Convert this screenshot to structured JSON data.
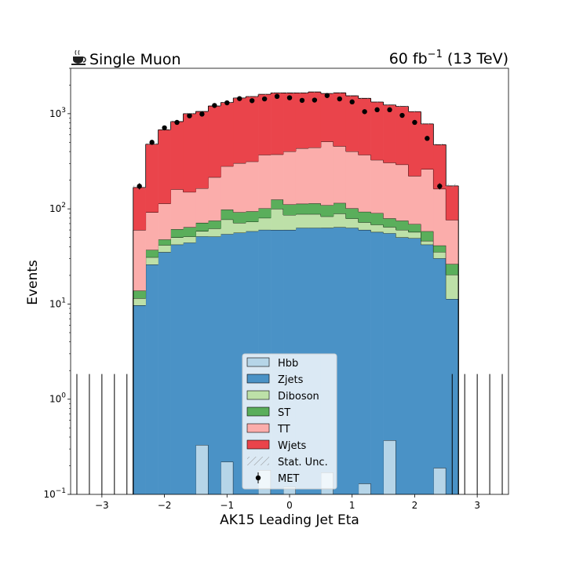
{
  "header": {
    "left_text": "Single Muon",
    "left_icon": "coffee-cup-icon",
    "lumi_value": "60 fb",
    "lumi_exponent": "−1",
    "lumi_energy": " (13 TeV)"
  },
  "chart_data": {
    "type": "histogram-stacked",
    "xlabel": "AK15 Leading Jet Eta",
    "ylabel": "Events",
    "yscale": "log",
    "xlim": [
      -3.5,
      3.5
    ],
    "ylim": [
      0.1,
      3000
    ],
    "x_ticks": [
      -3,
      -2,
      -1,
      0,
      1,
      2,
      3
    ],
    "x_tick_labels": [
      "−3",
      "−2",
      "−1",
      "0",
      "1",
      "2",
      "3"
    ],
    "y_ticks": [
      {
        "value": 0.1,
        "mantissa": "10",
        "exp": "−1"
      },
      {
        "value": 1,
        "mantissa": "10",
        "exp": "0"
      },
      {
        "value": 10,
        "mantissa": "10",
        "exp": "1"
      },
      {
        "value": 100,
        "mantissa": "10",
        "exp": "2"
      },
      {
        "value": 1000,
        "mantissa": "10",
        "exp": "3"
      }
    ],
    "bin_edges": [
      -3.5,
      -3.3,
      -3.1,
      -2.9,
      -2.7,
      -2.5,
      -2.3,
      -2.1,
      -1.9,
      -1.7,
      -1.5,
      -1.3,
      -1.1,
      -0.9,
      -0.7,
      -0.5,
      -0.3,
      -0.1,
      0.1,
      0.3,
      0.5,
      0.7,
      0.9,
      1.1,
      1.3,
      1.5,
      1.7,
      1.9,
      2.1,
      2.3,
      2.5,
      2.7,
      2.9,
      3.1,
      3.3,
      3.5
    ],
    "series": [
      {
        "name": "Hbb",
        "color": "#b6d5e8",
        "values": [
          0,
          0,
          0,
          0,
          0,
          0,
          0,
          0.1,
          0.1,
          0.1,
          0.33,
          0.1,
          0.22,
          0.1,
          0.1,
          0.18,
          0.1,
          0.12,
          0.1,
          0.1,
          0.17,
          0.1,
          0.1,
          0.13,
          0.1,
          0.37,
          0.1,
          0.1,
          0.1,
          0.19,
          0,
          0,
          0,
          0,
          0
        ]
      },
      {
        "name": "Zjets",
        "color": "#4a92c6",
        "values": [
          0,
          0,
          0,
          0,
          0,
          9.7,
          26,
          35,
          42,
          44,
          51,
          51,
          54,
          56,
          58,
          60,
          60,
          60,
          63,
          63,
          63,
          64,
          63,
          60,
          57,
          55,
          50,
          49,
          42,
          30,
          11.3,
          0,
          0,
          0,
          0
        ]
      },
      {
        "name": "Diboson",
        "color": "#bde0a8",
        "values": [
          0,
          0,
          0,
          0,
          0,
          1.8,
          5,
          6.5,
          8,
          7,
          7,
          11,
          23,
          15,
          15,
          20,
          40,
          26,
          25,
          25,
          20,
          25,
          16,
          12,
          11,
          9,
          10,
          8,
          4,
          5,
          9,
          0,
          0,
          0,
          0
        ]
      },
      {
        "name": "ST",
        "color": "#5aae5b",
        "values": [
          0,
          0,
          0,
          0,
          0,
          2.3,
          6,
          6,
          11,
          13,
          13,
          13,
          21,
          21,
          21,
          21,
          25,
          25,
          25,
          26,
          26,
          26,
          22,
          21,
          22,
          15,
          15,
          12,
          12,
          6,
          6,
          0,
          0,
          0,
          0
        ]
      },
      {
        "name": "TT",
        "color": "#fbadab",
        "values": [
          0,
          0,
          0,
          0,
          0,
          46,
          55,
          66,
          99,
          86,
          93,
          140,
          182,
          210,
          220,
          268,
          248,
          290,
          320,
          327,
          400,
          340,
          300,
          276,
          236,
          226,
          217,
          152,
          203,
          121,
          50,
          0,
          0,
          0,
          0
        ]
      },
      {
        "name": "Wjets",
        "color": "#ea444b",
        "values": [
          0,
          0,
          0,
          0,
          0,
          108,
          386,
          564,
          666,
          850,
          890,
          990,
          1030,
          1160,
          1200,
          1230,
          1280,
          1250,
          1220,
          1250,
          1120,
          1200,
          1140,
          1080,
          1000,
          930,
          900,
          830,
          520,
          310,
          98,
          0,
          0,
          0,
          0
        ]
      }
    ],
    "uncertainty_label": "Stat. Unc.",
    "data": {
      "name": "MET",
      "x": [
        -3.4,
        -3.2,
        -3.0,
        -2.8,
        -2.6,
        -2.4,
        -2.2,
        -2.0,
        -1.8,
        -1.6,
        -1.4,
        -1.2,
        -1.0,
        -0.8,
        -0.6,
        -0.4,
        -0.2,
        0.0,
        0.2,
        0.4,
        0.6,
        0.8,
        1.0,
        1.2,
        1.4,
        1.6,
        1.8,
        2.0,
        2.2,
        2.4,
        2.6,
        2.8,
        3.0,
        3.2,
        3.4
      ],
      "y": [
        0,
        0,
        0,
        0,
        0,
        173,
        500,
        710,
        810,
        950,
        990,
        1220,
        1300,
        1440,
        1370,
        1430,
        1520,
        1470,
        1380,
        1390,
        1550,
        1430,
        1330,
        1050,
        1100,
        1100,
        960,
        810,
        550,
        173,
        0,
        0,
        0,
        0,
        0
      ],
      "err": [
        1.84,
        1.84,
        1.84,
        1.84,
        1.84,
        13,
        22,
        27,
        28,
        31,
        31,
        35,
        36,
        38,
        37,
        38,
        39,
        38,
        37,
        37,
        39,
        38,
        36,
        32,
        33,
        33,
        31,
        28,
        23,
        13,
        1.84,
        1.84,
        1.84,
        1.84,
        1.84
      ]
    },
    "legend": {
      "placement": "lower-center"
    }
  }
}
